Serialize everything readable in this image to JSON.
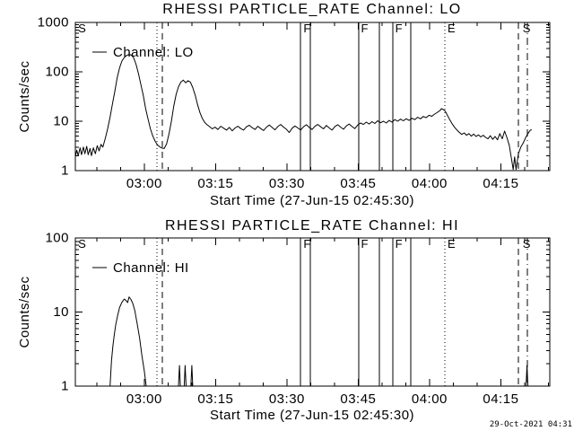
{
  "page": {
    "background": "#ffffff",
    "foreground": "#000000",
    "timestamp": "29-Oct-2021 04:31"
  },
  "chart_data": [
    {
      "type": "line",
      "title": "RHESSI PARTICLE_RATE Channel: LO",
      "xlabel": "Start Time (27-Jun-15 02:45:30)",
      "ylabel": "Counts/sec",
      "legend_label": "Channel: LO",
      "x_axis": {
        "unit": "minutes since 02:45:30",
        "range_minutes": [
          0,
          99.8
        ],
        "major_tick_minutes": [
          14.5,
          29.5,
          44.5,
          59.5,
          74.5,
          89.5
        ],
        "minor_tick_minutes": [
          4.5,
          9.5,
          19.5,
          24.5,
          34.5,
          39.5,
          49.5,
          54.5,
          64.5,
          69.5,
          79.5,
          84.5,
          94.5,
          99.5
        ],
        "tick_labels": [
          "03:00",
          "03:15",
          "03:30",
          "03:45",
          "04:00",
          "04:15"
        ]
      },
      "y_axis": {
        "scale": "log",
        "ylim": [
          1,
          1000
        ],
        "tick_labels": [
          "1",
          "10",
          "100",
          "1000"
        ]
      },
      "flags": [
        {
          "style": "dotted",
          "t": 17.2
        },
        {
          "style": "dashed",
          "t": 18.3
        },
        {
          "style": "solid",
          "t": 47.4
        },
        {
          "style": "solid",
          "t": 49.4
        },
        {
          "style": "solid",
          "t": 59.6
        },
        {
          "style": "solid",
          "t": 64.0
        },
        {
          "style": "solid",
          "t": 66.8
        },
        {
          "style": "solid",
          "t": 70.6
        },
        {
          "style": "dotted",
          "t": 77.7
        },
        {
          "style": "dashed",
          "t": 93.2
        },
        {
          "style": "dashdot",
          "t": 95.1
        }
      ],
      "flag_labels": [
        {
          "t": 0.4,
          "label": "S"
        },
        {
          "t": 47.8,
          "label": "F"
        },
        {
          "t": 59.9,
          "label": "F"
        },
        {
          "t": 67.1,
          "label": "F"
        },
        {
          "t": 78.1,
          "label": "E"
        },
        {
          "t": 93.9,
          "label": "S"
        }
      ],
      "series": [
        {
          "name": "Channel: LO",
          "points_t_counts": [
            [
              0,
              1.9
            ],
            [
              0.3,
              2.6
            ],
            [
              0.6,
              2.0
            ],
            [
              1.0,
              2.9
            ],
            [
              1.3,
              2.1
            ],
            [
              1.7,
              3.0
            ],
            [
              2.0,
              2.2
            ],
            [
              2.4,
              3.1
            ],
            [
              2.7,
              2.1
            ],
            [
              3.1,
              2.8
            ],
            [
              3.4,
              2.0
            ],
            [
              3.8,
              2.9
            ],
            [
              4.2,
              2.2
            ],
            [
              4.6,
              3.2
            ],
            [
              5.0,
              2.5
            ],
            [
              5.4,
              3.4
            ],
            [
              5.8,
              3.0
            ],
            [
              6.3,
              4.5
            ],
            [
              6.8,
              7
            ],
            [
              7.3,
              12
            ],
            [
              7.8,
              22
            ],
            [
              8.3,
              40
            ],
            [
              8.8,
              75
            ],
            [
              9.3,
              120
            ],
            [
              9.8,
              165
            ],
            [
              10.3,
              195
            ],
            [
              10.8,
              215
            ],
            [
              11.3,
              225
            ],
            [
              11.8,
              218
            ],
            [
              12.3,
              190
            ],
            [
              12.8,
              140
            ],
            [
              13.3,
              90
            ],
            [
              13.8,
              55
            ],
            [
              14.3,
              33
            ],
            [
              14.8,
              18
            ],
            [
              15.3,
              11
            ],
            [
              15.8,
              7
            ],
            [
              16.3,
              5
            ],
            [
              16.8,
              3.9
            ],
            [
              17.3,
              3.3
            ],
            [
              17.8,
              3.0
            ],
            [
              18.3,
              2.85
            ],
            [
              18.7,
              2.8
            ],
            [
              19.2,
              3.5
            ],
            [
              19.7,
              5.5
            ],
            [
              20.2,
              10
            ],
            [
              20.7,
              20
            ],
            [
              21.2,
              35
            ],
            [
              21.7,
              50
            ],
            [
              22.2,
              62
            ],
            [
              22.7,
              68
            ],
            [
              23.2,
              60
            ],
            [
              23.7,
              66
            ],
            [
              24.2,
              62
            ],
            [
              24.7,
              48
            ],
            [
              25.2,
              34
            ],
            [
              25.7,
              22
            ],
            [
              26.2,
              15
            ],
            [
              26.7,
              11.5
            ],
            [
              27.2,
              9.5
            ],
            [
              27.7,
              8.5
            ],
            [
              28.2,
              7.8
            ],
            [
              28.8,
              7.0
            ],
            [
              29.4,
              7.6
            ],
            [
              30.0,
              6.8
            ],
            [
              30.6,
              7.9
            ],
            [
              31.2,
              7.2
            ],
            [
              31.8,
              6.6
            ],
            [
              32.4,
              7.5
            ],
            [
              33.0,
              6.4
            ],
            [
              33.6,
              7.3
            ],
            [
              34.2,
              7.9
            ],
            [
              34.8,
              7.1
            ],
            [
              35.4,
              6.6
            ],
            [
              36.0,
              7.7
            ],
            [
              36.6,
              8.3
            ],
            [
              37.2,
              7.4
            ],
            [
              37.8,
              6.8
            ],
            [
              38.4,
              7.9
            ],
            [
              39.0,
              7.1
            ],
            [
              39.6,
              6.5
            ],
            [
              40.2,
              7.6
            ],
            [
              40.8,
              8.4
            ],
            [
              41.4,
              7.5
            ],
            [
              42.0,
              6.7
            ],
            [
              42.6,
              7.8
            ],
            [
              43.2,
              8.6
            ],
            [
              43.8,
              7.6
            ],
            [
              44.4,
              6.9
            ],
            [
              45.0,
              5.9
            ],
            [
              45.6,
              7.2
            ],
            [
              46.2,
              8.0
            ],
            [
              46.8,
              7.3
            ],
            [
              47.4,
              6.6
            ],
            [
              48.0,
              7.7
            ],
            [
              48.6,
              8.5
            ],
            [
              49.2,
              7.5
            ],
            [
              49.8,
              6.8
            ],
            [
              50.4,
              7.9
            ],
            [
              51.0,
              8.6
            ],
            [
              51.6,
              7.7
            ],
            [
              52.2,
              7.0
            ],
            [
              52.8,
              8.2
            ],
            [
              53.4,
              7.3
            ],
            [
              54.0,
              6.6
            ],
            [
              54.6,
              7.8
            ],
            [
              55.2,
              8.5
            ],
            [
              55.8,
              7.6
            ],
            [
              56.4,
              6.9
            ],
            [
              57.0,
              8.0
            ],
            [
              57.6,
              8.8
            ],
            [
              58.2,
              7.8
            ],
            [
              58.8,
              7.1
            ],
            [
              59.4,
              8.4
            ],
            [
              60.0,
              9.2
            ],
            [
              60.6,
              8.6
            ],
            [
              61.2,
              9.6
            ],
            [
              61.8,
              8.8
            ],
            [
              62.4,
              9.8
            ],
            [
              63.0,
              9.0
            ],
            [
              63.6,
              10.2
            ],
            [
              64.2,
              9.3
            ],
            [
              64.8,
              10.0
            ],
            [
              65.4,
              9.2
            ],
            [
              66.0,
              10.4
            ],
            [
              66.6,
              9.6
            ],
            [
              67.2,
              10.8
            ],
            [
              67.8,
              10.0
            ],
            [
              68.4,
              11.0
            ],
            [
              69.0,
              10.2
            ],
            [
              69.6,
              11.2
            ],
            [
              70.2,
              10.4
            ],
            [
              70.8,
              11.5
            ],
            [
              71.4,
              10.8
            ],
            [
              72.0,
              12.0
            ],
            [
              72.6,
              11.2
            ],
            [
              73.2,
              12.5
            ],
            [
              73.8,
              11.8
            ],
            [
              74.4,
              13.2
            ],
            [
              75.0,
              12.6
            ],
            [
              75.6,
              14.0
            ],
            [
              76.2,
              15.2
            ],
            [
              76.8,
              16.8
            ],
            [
              77.0,
              18.0
            ],
            [
              77.4,
              17.2
            ],
            [
              77.8,
              16.0
            ],
            [
              78.3,
              13.0
            ],
            [
              78.8,
              10.5
            ],
            [
              79.3,
              8.8
            ],
            [
              79.8,
              7.5
            ],
            [
              80.3,
              6.6
            ],
            [
              80.8,
              5.9
            ],
            [
              81.3,
              5.4
            ],
            [
              81.8,
              5.8
            ],
            [
              82.3,
              5.2
            ],
            [
              82.8,
              5.6
            ],
            [
              83.3,
              5.0
            ],
            [
              83.8,
              5.5
            ],
            [
              84.3,
              4.9
            ],
            [
              84.8,
              5.3
            ],
            [
              85.3,
              4.8
            ],
            [
              85.8,
              5.2
            ],
            [
              86.3,
              4.7
            ],
            [
              86.8,
              4.4
            ],
            [
              87.3,
              5.1
            ],
            [
              87.8,
              4.3
            ],
            [
              88.3,
              4.9
            ],
            [
              88.8,
              4.2
            ],
            [
              89.3,
              5.6
            ],
            [
              89.8,
              4.4
            ],
            [
              90.3,
              6.3
            ],
            [
              90.8,
              4.6
            ],
            [
              91.3,
              3.2
            ],
            [
              91.8,
              1.6
            ],
            [
              92.1,
              1.05
            ],
            [
              92.4,
              1.9
            ],
            [
              92.7,
              1.05
            ],
            [
              93.2,
              2.2
            ],
            [
              93.7,
              3.0
            ],
            [
              94.2,
              3.6
            ],
            [
              94.7,
              4.6
            ],
            [
              95.2,
              5.6
            ],
            [
              95.7,
              6.6
            ],
            [
              96.0,
              6.7
            ]
          ]
        }
      ]
    },
    {
      "type": "line",
      "title": "RHESSI PARTICLE_RATE Channel: HI",
      "xlabel": "Start Time (27-Jun-15 02:45:30)",
      "ylabel": "Counts/sec",
      "legend_label": "Channel: HI",
      "x_axis": {
        "unit": "minutes since 02:45:30",
        "range_minutes": [
          0,
          99.8
        ],
        "major_tick_minutes": [
          14.5,
          29.5,
          44.5,
          59.5,
          74.5,
          89.5
        ],
        "minor_tick_minutes": [
          4.5,
          9.5,
          19.5,
          24.5,
          34.5,
          39.5,
          49.5,
          54.5,
          64.5,
          69.5,
          79.5,
          84.5,
          94.5,
          99.5
        ],
        "tick_labels": [
          "03:00",
          "03:15",
          "03:30",
          "03:45",
          "04:00",
          "04:15"
        ]
      },
      "y_axis": {
        "scale": "log",
        "ylim": [
          1,
          100
        ],
        "tick_labels": [
          "1",
          "10",
          "100"
        ]
      },
      "flags": [
        {
          "style": "dotted",
          "t": 17.2
        },
        {
          "style": "dashed",
          "t": 18.3
        },
        {
          "style": "solid",
          "t": 47.4
        },
        {
          "style": "solid",
          "t": 49.4
        },
        {
          "style": "solid",
          "t": 59.6
        },
        {
          "style": "solid",
          "t": 64.0
        },
        {
          "style": "solid",
          "t": 66.8
        },
        {
          "style": "solid",
          "t": 70.6
        },
        {
          "style": "dotted",
          "t": 77.7
        },
        {
          "style": "dashed",
          "t": 93.2
        },
        {
          "style": "dashdot",
          "t": 95.1
        }
      ],
      "flag_labels": [
        {
          "t": 0.4,
          "label": "S"
        },
        {
          "t": 47.8,
          "label": "F"
        },
        {
          "t": 59.9,
          "label": "F"
        },
        {
          "t": 67.1,
          "label": "F"
        },
        {
          "t": 78.1,
          "label": "E"
        },
        {
          "t": 93.9,
          "label": "S"
        }
      ],
      "series": [
        {
          "name": "Channel: HI",
          "points_t_counts": [
            [
              0,
              1
            ],
            [
              7.3,
              1
            ],
            [
              7.6,
              2.2
            ],
            [
              7.9,
              3.5
            ],
            [
              8.2,
              5.0
            ],
            [
              8.5,
              6.8
            ],
            [
              8.9,
              9.0
            ],
            [
              9.3,
              11.5
            ],
            [
              9.8,
              13.5
            ],
            [
              10.3,
              15.0
            ],
            [
              10.7,
              14.2
            ],
            [
              11.0,
              13.4
            ],
            [
              11.3,
              16.0
            ],
            [
              11.7,
              14.8
            ],
            [
              12.1,
              13.0
            ],
            [
              12.5,
              10.5
            ],
            [
              13.0,
              7.0
            ],
            [
              13.5,
              4.5
            ],
            [
              14.0,
              2.6
            ],
            [
              14.5,
              1.6
            ],
            [
              14.9,
              1
            ],
            [
              21.7,
              1
            ],
            [
              21.9,
              1.9
            ],
            [
              22.1,
              1
            ],
            [
              22.9,
              1
            ],
            [
              23.1,
              1.9
            ],
            [
              23.3,
              1
            ],
            [
              24.3,
              1
            ],
            [
              24.5,
              1.9
            ],
            [
              24.7,
              1
            ],
            [
              94.8,
              1
            ],
            [
              95.0,
              1.9
            ],
            [
              95.2,
              1
            ],
            [
              96.0,
              1
            ]
          ]
        }
      ]
    }
  ]
}
